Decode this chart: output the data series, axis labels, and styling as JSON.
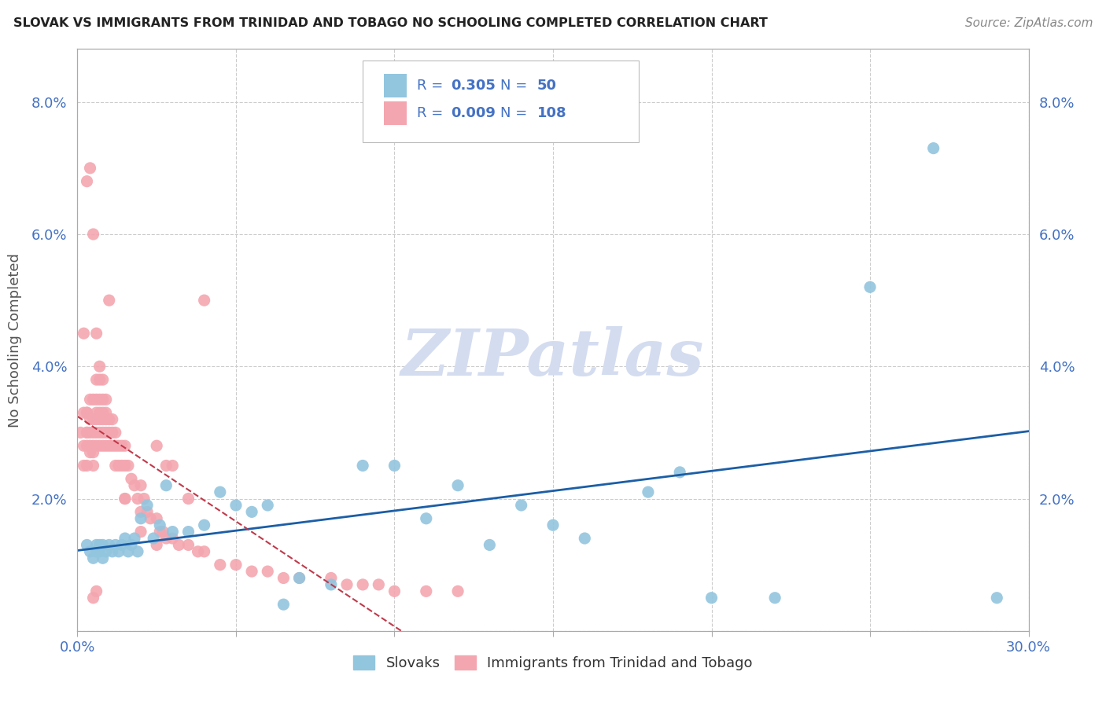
{
  "title": "SLOVAK VS IMMIGRANTS FROM TRINIDAD AND TOBAGO NO SCHOOLING COMPLETED CORRELATION CHART",
  "source": "Source: ZipAtlas.com",
  "ylabel": "No Schooling Completed",
  "legend_blue_R": "0.305",
  "legend_blue_N": "50",
  "legend_pink_R": "0.009",
  "legend_pink_N": "108",
  "legend_text_color": "#4472C4",
  "blue_color": "#92C5DE",
  "pink_color": "#F4A6B0",
  "trend_blue_color": "#1B5EA6",
  "trend_pink_color": "#C0394A",
  "watermark": "ZIPatlas",
  "watermark_color": "#D4DCF0",
  "xlim": [
    0.0,
    0.3
  ],
  "ylim": [
    0.0,
    0.088
  ],
  "ytick_values": [
    0.0,
    0.02,
    0.04,
    0.06,
    0.08
  ],
  "ytick_labels": [
    "",
    "2.0%",
    "4.0%",
    "6.0%",
    "8.0%"
  ],
  "xtick_values": [
    0.0,
    0.05,
    0.1,
    0.15,
    0.2,
    0.25,
    0.3
  ],
  "blue_points_x": [
    0.003,
    0.004,
    0.005,
    0.006,
    0.006,
    0.007,
    0.007,
    0.008,
    0.008,
    0.009,
    0.01,
    0.011,
    0.012,
    0.013,
    0.014,
    0.015,
    0.016,
    0.017,
    0.018,
    0.019,
    0.02,
    0.022,
    0.024,
    0.026,
    0.028,
    0.03,
    0.035,
    0.04,
    0.045,
    0.05,
    0.055,
    0.06,
    0.065,
    0.07,
    0.08,
    0.09,
    0.1,
    0.11,
    0.12,
    0.13,
    0.14,
    0.15,
    0.16,
    0.18,
    0.19,
    0.2,
    0.22,
    0.25,
    0.27,
    0.29
  ],
  "blue_points_y": [
    0.013,
    0.012,
    0.011,
    0.013,
    0.012,
    0.013,
    0.012,
    0.013,
    0.011,
    0.012,
    0.013,
    0.012,
    0.013,
    0.012,
    0.013,
    0.014,
    0.012,
    0.013,
    0.014,
    0.012,
    0.017,
    0.019,
    0.014,
    0.016,
    0.022,
    0.015,
    0.015,
    0.016,
    0.021,
    0.019,
    0.018,
    0.019,
    0.004,
    0.008,
    0.007,
    0.025,
    0.025,
    0.017,
    0.022,
    0.013,
    0.019,
    0.016,
    0.014,
    0.021,
    0.024,
    0.005,
    0.005,
    0.052,
    0.073,
    0.005
  ],
  "pink_points_x": [
    0.001,
    0.002,
    0.002,
    0.002,
    0.003,
    0.003,
    0.003,
    0.003,
    0.003,
    0.004,
    0.004,
    0.004,
    0.004,
    0.004,
    0.005,
    0.005,
    0.005,
    0.005,
    0.005,
    0.005,
    0.006,
    0.006,
    0.006,
    0.006,
    0.006,
    0.006,
    0.007,
    0.007,
    0.007,
    0.007,
    0.007,
    0.007,
    0.008,
    0.008,
    0.008,
    0.008,
    0.008,
    0.009,
    0.009,
    0.009,
    0.009,
    0.01,
    0.01,
    0.01,
    0.011,
    0.011,
    0.011,
    0.012,
    0.012,
    0.013,
    0.013,
    0.014,
    0.014,
    0.015,
    0.015,
    0.016,
    0.017,
    0.018,
    0.019,
    0.02,
    0.021,
    0.022,
    0.023,
    0.025,
    0.026,
    0.027,
    0.028,
    0.03,
    0.032,
    0.035,
    0.038,
    0.04,
    0.045,
    0.05,
    0.055,
    0.06,
    0.065,
    0.07,
    0.08,
    0.085,
    0.09,
    0.095,
    0.1,
    0.11,
    0.12,
    0.003,
    0.004,
    0.005,
    0.006,
    0.007,
    0.008,
    0.009,
    0.01,
    0.015,
    0.02,
    0.025,
    0.028,
    0.035,
    0.04,
    0.03,
    0.002,
    0.003,
    0.005,
    0.006,
    0.012,
    0.015,
    0.02,
    0.025
  ],
  "pink_points_y": [
    0.03,
    0.025,
    0.028,
    0.033,
    0.03,
    0.025,
    0.028,
    0.03,
    0.033,
    0.027,
    0.028,
    0.03,
    0.032,
    0.035,
    0.025,
    0.027,
    0.028,
    0.03,
    0.032,
    0.035,
    0.028,
    0.03,
    0.032,
    0.033,
    0.035,
    0.038,
    0.028,
    0.03,
    0.032,
    0.033,
    0.035,
    0.038,
    0.028,
    0.03,
    0.032,
    0.033,
    0.035,
    0.028,
    0.03,
    0.032,
    0.033,
    0.028,
    0.03,
    0.032,
    0.028,
    0.03,
    0.032,
    0.028,
    0.03,
    0.025,
    0.028,
    0.025,
    0.028,
    0.025,
    0.028,
    0.025,
    0.023,
    0.022,
    0.02,
    0.022,
    0.02,
    0.018,
    0.017,
    0.017,
    0.015,
    0.015,
    0.014,
    0.014,
    0.013,
    0.013,
    0.012,
    0.012,
    0.01,
    0.01,
    0.009,
    0.009,
    0.008,
    0.008,
    0.008,
    0.007,
    0.007,
    0.007,
    0.006,
    0.006,
    0.006,
    0.068,
    0.07,
    0.06,
    0.045,
    0.04,
    0.038,
    0.035,
    0.05,
    0.02,
    0.018,
    0.028,
    0.025,
    0.02,
    0.05,
    0.025,
    0.045,
    0.033,
    0.005,
    0.006,
    0.025,
    0.02,
    0.015,
    0.013
  ]
}
